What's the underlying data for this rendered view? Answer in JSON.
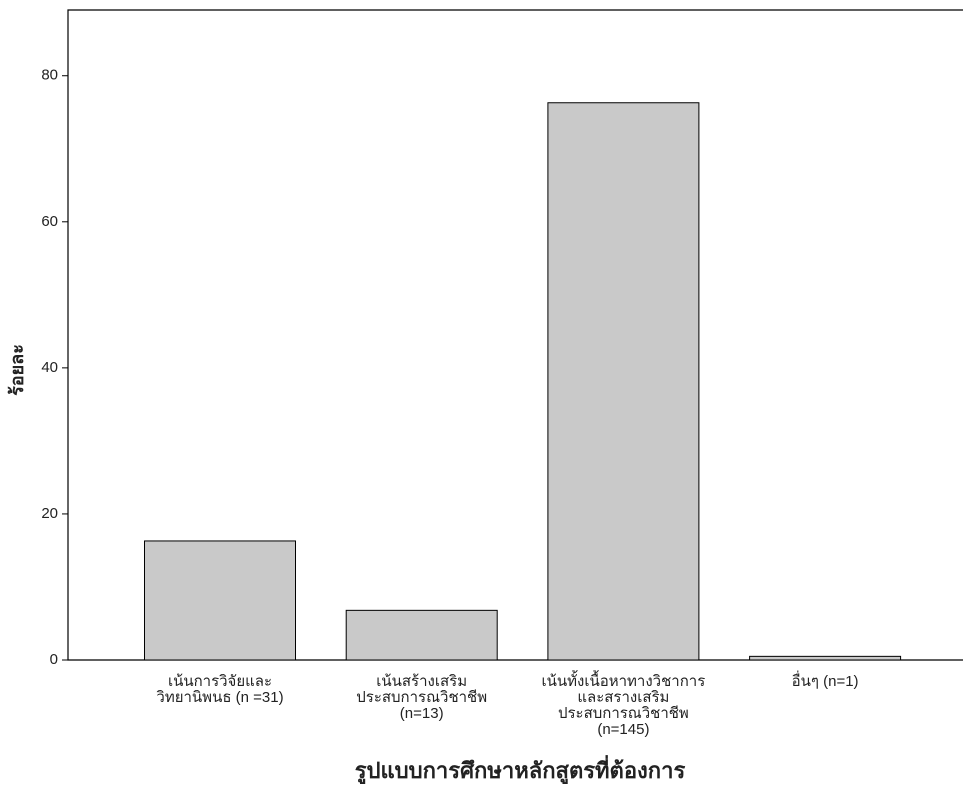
{
  "chart_data": {
    "type": "bar",
    "y_label": "ร้อยละ",
    "x_label": "รูปแบบการศึกษาหลักสูตรที่ต้องการ",
    "categories": [
      "เน้นการวิจัยและ\nวิทยานิพนธ (n =31)",
      "เน้นสร้างเสริม\nประสบการณวิชาชีพ\n(n=13)",
      "เน้นทั้งเนื้อหาทางวิชาการ\nและสรางเสริม\nประสบการณวิชาชีพ\n(n=145)",
      "อื่นๆ (n=1)"
    ],
    "values": [
      16.3,
      6.8,
      76.3,
      0.5
    ],
    "color": "#c9c9c9",
    "ylim": [
      0,
      89
    ],
    "yticks": [
      0,
      20,
      40,
      60,
      80
    ],
    "grid": false
  }
}
